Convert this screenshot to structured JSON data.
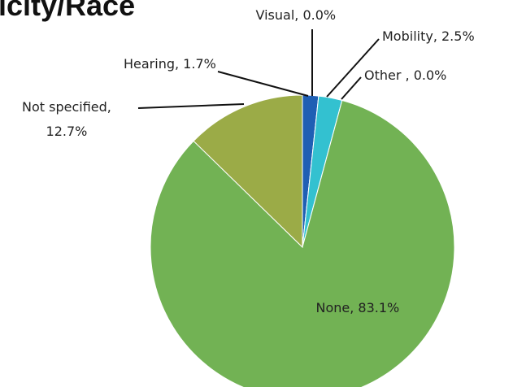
{
  "title": "icity/Race",
  "chart_data": {
    "type": "pie",
    "values": [
      1.7,
      0.0,
      2.5,
      0.0,
      83.1,
      12.7
    ],
    "value_labels": [
      "Hearing, 1.7%",
      "Visual, 0.0%",
      "Mobility, 2.5%",
      "Other , 0.0%",
      "None, 83.1%",
      "Not specified,\n12.7%"
    ],
    "colors": [
      "#1f5fb4",
      "#1f5fb4",
      "#33c1d0",
      "#33c1d0",
      "#72b254",
      "#9bab47"
    ]
  }
}
